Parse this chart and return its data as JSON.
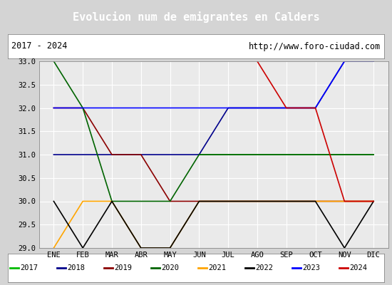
{
  "title": "Evolucion num de emigrantes en Calders",
  "subtitle_left": "2017 - 2024",
  "subtitle_right": "http://www.foro-ciudad.com",
  "months": [
    "ENE",
    "FEB",
    "MAR",
    "ABR",
    "MAY",
    "JUN",
    "JUL",
    "AGO",
    "SEP",
    "OCT",
    "NOV",
    "DIC"
  ],
  "month_indices": [
    1,
    2,
    3,
    4,
    5,
    6,
    7,
    8,
    9,
    10,
    11,
    12
  ],
  "ylim": [
    29.0,
    33.0
  ],
  "yticks": [
    29.0,
    29.5,
    30.0,
    30.5,
    31.0,
    31.5,
    32.0,
    32.5,
    33.0
  ],
  "series": {
    "2017": {
      "color": "#00bb00",
      "values": [
        null,
        null,
        null,
        null,
        null,
        31,
        31,
        31,
        31,
        31,
        31,
        31
      ]
    },
    "2018": {
      "color": "#00008b",
      "values": [
        31,
        31,
        31,
        31,
        31,
        31,
        32,
        32,
        32,
        32,
        33,
        33
      ]
    },
    "2019": {
      "color": "#8b0000",
      "values": [
        32,
        32,
        31,
        31,
        30,
        30,
        30,
        30,
        30,
        30,
        30,
        30
      ]
    },
    "2020": {
      "color": "#006400",
      "values": [
        33,
        32,
        30,
        30,
        30,
        31,
        31,
        31,
        31,
        31,
        31,
        31
      ]
    },
    "2021": {
      "color": "#ffa500",
      "values": [
        29,
        30,
        30,
        29,
        29,
        30,
        30,
        30,
        30,
        30,
        30,
        30
      ]
    },
    "2022": {
      "color": "#000000",
      "values": [
        30,
        29,
        30,
        29,
        29,
        30,
        30,
        30,
        30,
        30,
        29,
        30
      ]
    },
    "2023": {
      "color": "#0000ff",
      "values": [
        32,
        32,
        32,
        32,
        32,
        32,
        32,
        32,
        32,
        32,
        33,
        33
      ]
    },
    "2024": {
      "color": "#cc0000",
      "values": [
        null,
        null,
        null,
        null,
        null,
        null,
        null,
        33,
        32,
        32,
        30,
        30
      ]
    }
  },
  "legend_order": [
    "2017",
    "2018",
    "2019",
    "2020",
    "2021",
    "2022",
    "2023",
    "2024"
  ],
  "bg_color": "#d4d4d4",
  "plot_bg_color": "#eaeaea",
  "title_bg_color": "#5080c0",
  "title_text_color": "#ffffff",
  "header_bg_color": "#ffffff",
  "fig_width": 5.5,
  "fig_height": 4.0,
  "dpi": 100
}
